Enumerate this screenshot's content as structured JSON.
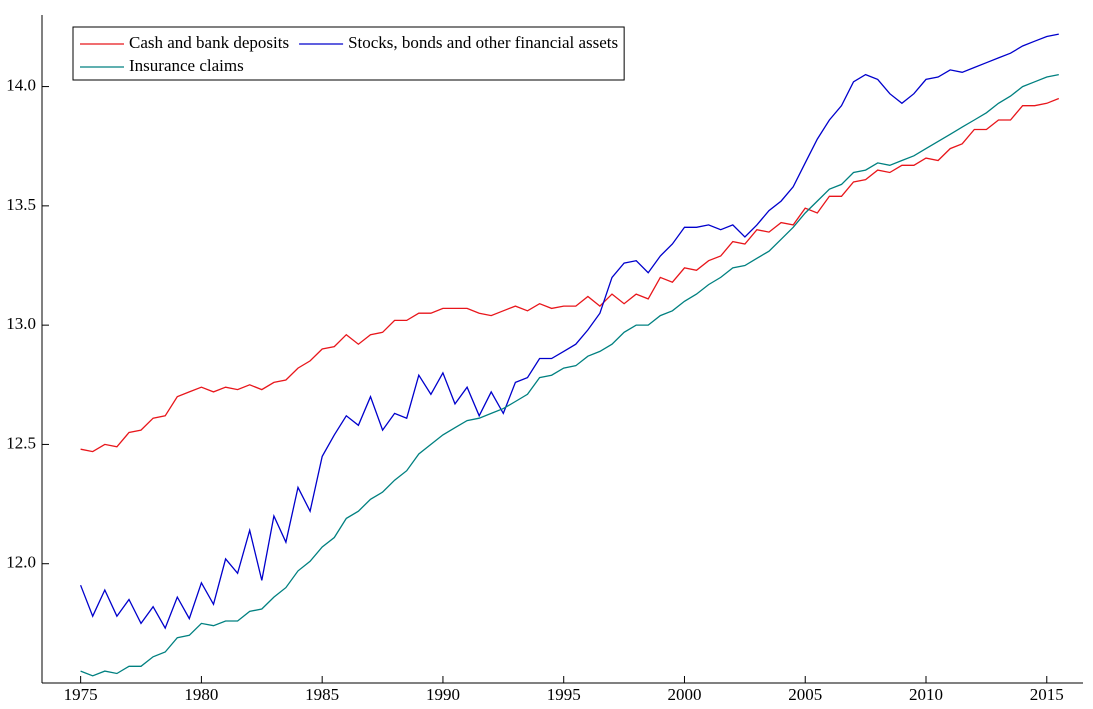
{
  "chart_data": {
    "type": "line",
    "x": [
      1975,
      1975.5,
      1976,
      1976.5,
      1977,
      1977.5,
      1978,
      1978.5,
      1979,
      1979.5,
      1980,
      1980.5,
      1981,
      1981.5,
      1982,
      1982.5,
      1983,
      1983.5,
      1984,
      1984.5,
      1985,
      1985.5,
      1986,
      1986.5,
      1987,
      1987.5,
      1988,
      1988.5,
      1989,
      1989.5,
      1990,
      1990.5,
      1991,
      1991.5,
      1992,
      1992.5,
      1993,
      1993.5,
      1994,
      1994.5,
      1995,
      1995.5,
      1996,
      1996.5,
      1997,
      1997.5,
      1998,
      1998.5,
      1999,
      1999.5,
      2000,
      2000.5,
      2001,
      2001.5,
      2002,
      2002.5,
      2003,
      2003.5,
      2004,
      2004.5,
      2005,
      2005.5,
      2006,
      2006.5,
      2007,
      2007.5,
      2008,
      2008.5,
      2009,
      2009.5,
      2010,
      2010.5,
      2011,
      2011.5,
      2012,
      2012.5,
      2013,
      2013.5,
      2014,
      2014.5,
      2015,
      2015.5
    ],
    "series": [
      {
        "name": "Cash and bank deposits",
        "color": "#e8161b",
        "values": [
          12.48,
          12.47,
          12.5,
          12.49,
          12.55,
          12.56,
          12.61,
          12.62,
          12.7,
          12.72,
          12.74,
          12.72,
          12.74,
          12.73,
          12.75,
          12.73,
          12.76,
          12.77,
          12.82,
          12.85,
          12.9,
          12.91,
          12.96,
          12.92,
          12.96,
          12.97,
          13.02,
          13.02,
          13.05,
          13.05,
          13.07,
          13.07,
          13.07,
          13.05,
          13.04,
          13.06,
          13.08,
          13.06,
          13.09,
          13.07,
          13.08,
          13.08,
          13.12,
          13.08,
          13.13,
          13.09,
          13.13,
          13.11,
          13.2,
          13.18,
          13.24,
          13.23,
          13.27,
          13.29,
          13.35,
          13.34,
          13.4,
          13.39,
          13.43,
          13.42,
          13.49,
          13.47,
          13.54,
          13.54,
          13.6,
          13.61,
          13.65,
          13.64,
          13.67,
          13.67,
          13.7,
          13.69,
          13.74,
          13.76,
          13.82,
          13.82,
          13.86,
          13.86,
          13.92,
          13.92,
          13.93,
          13.95
        ]
      },
      {
        "name": "Stocks, bonds and other financial assets",
        "color": "#0000cc",
        "values": [
          11.91,
          11.78,
          11.89,
          11.78,
          11.85,
          11.75,
          11.82,
          11.73,
          11.86,
          11.77,
          11.92,
          11.83,
          12.02,
          11.96,
          12.14,
          11.93,
          12.2,
          12.09,
          12.32,
          12.22,
          12.45,
          12.54,
          12.62,
          12.58,
          12.7,
          12.56,
          12.63,
          12.61,
          12.79,
          12.71,
          12.8,
          12.67,
          12.74,
          12.62,
          12.72,
          12.63,
          12.76,
          12.78,
          12.86,
          12.86,
          12.89,
          12.92,
          12.98,
          13.05,
          13.2,
          13.26,
          13.27,
          13.22,
          13.29,
          13.34,
          13.41,
          13.41,
          13.42,
          13.4,
          13.42,
          13.37,
          13.42,
          13.48,
          13.52,
          13.58,
          13.68,
          13.78,
          13.86,
          13.92,
          14.02,
          14.05,
          14.03,
          13.97,
          13.93,
          13.97,
          14.03,
          14.04,
          14.07,
          14.06,
          14.08,
          14.1,
          14.12,
          14.14,
          14.17,
          14.19,
          14.21,
          14.22
        ]
      },
      {
        "name": "Insurance claims",
        "color": "#008080",
        "values": [
          11.55,
          11.53,
          11.55,
          11.54,
          11.57,
          11.57,
          11.61,
          11.63,
          11.69,
          11.7,
          11.75,
          11.74,
          11.76,
          11.76,
          11.8,
          11.81,
          11.86,
          11.9,
          11.97,
          12.01,
          12.07,
          12.11,
          12.19,
          12.22,
          12.27,
          12.3,
          12.35,
          12.39,
          12.46,
          12.5,
          12.54,
          12.57,
          12.6,
          12.61,
          12.63,
          12.65,
          12.68,
          12.71,
          12.78,
          12.79,
          12.82,
          12.83,
          12.87,
          12.89,
          12.92,
          12.97,
          13.0,
          13.0,
          13.04,
          13.06,
          13.1,
          13.13,
          13.17,
          13.2,
          13.24,
          13.25,
          13.28,
          13.31,
          13.36,
          13.41,
          13.47,
          13.52,
          13.57,
          13.59,
          13.64,
          13.65,
          13.68,
          13.67,
          13.69,
          13.71,
          13.74,
          13.77,
          13.8,
          13.83,
          13.86,
          13.89,
          13.93,
          13.96,
          14.0,
          14.02,
          14.04,
          14.05
        ]
      }
    ],
    "xlim": [
      1973.4,
      2016.5
    ],
    "xticks": [
      1975,
      1980,
      1985,
      1990,
      1995,
      2000,
      2005,
      2010,
      2015
    ],
    "ylim": [
      11.5,
      14.3
    ],
    "yticks": [
      {
        "value": 12.0,
        "label": "12.0"
      },
      {
        "value": 12.5,
        "label": "12.5"
      },
      {
        "value": 13.0,
        "label": "13.0"
      },
      {
        "value": 13.5,
        "label": "13.5"
      },
      {
        "value": 14.0,
        "label": "14.0"
      }
    ],
    "legend": "upper left"
  }
}
